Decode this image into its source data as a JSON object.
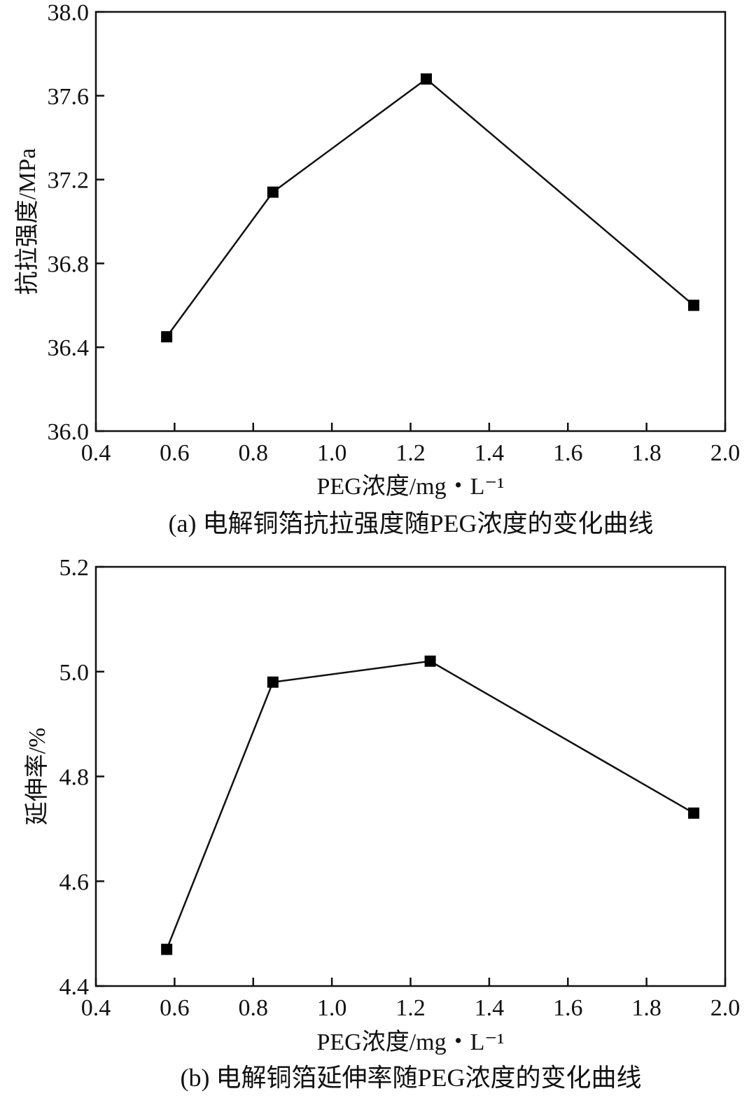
{
  "chart_data": [
    {
      "type": "line",
      "caption": "(a) 电解铜箔抗拉强度随PEG浓度的变化曲线",
      "xlabel": "PEG浓度/mg・L⁻¹",
      "ylabel": "抗拉强度/MPa",
      "xlim": [
        0.4,
        2.0
      ],
      "ylim": [
        36.0,
        38.0
      ],
      "xticks": [
        "0.4",
        "0.6",
        "0.8",
        "1.0",
        "1.2",
        "1.4",
        "1.6",
        "1.8",
        "2.0"
      ],
      "yticks": [
        "36.0",
        "36.4",
        "36.8",
        "37.2",
        "37.6",
        "38.0"
      ],
      "x": [
        0.58,
        0.85,
        1.24,
        1.92
      ],
      "series": [
        {
          "values": [
            36.45,
            37.14,
            37.68,
            36.6
          ]
        }
      ],
      "marker": "square",
      "grid": false,
      "legend": "none"
    },
    {
      "type": "line",
      "caption": "(b) 电解铜箔延伸率随PEG浓度的变化曲线",
      "xlabel": "PEG浓度/mg・L⁻¹",
      "ylabel": "延伸率/%",
      "xlim": [
        0.4,
        2.0
      ],
      "ylim": [
        4.4,
        5.2
      ],
      "xticks": [
        "0.4",
        "0.6",
        "0.8",
        "1.0",
        "1.2",
        "1.4",
        "1.6",
        "1.8",
        "2.0"
      ],
      "yticks": [
        "4.4",
        "4.6",
        "4.8",
        "5.0",
        "5.2"
      ],
      "x": [
        0.58,
        0.85,
        1.25,
        1.92
      ],
      "series": [
        {
          "values": [
            4.47,
            4.98,
            5.02,
            4.73
          ]
        }
      ],
      "marker": "square",
      "grid": false,
      "legend": "none"
    }
  ]
}
